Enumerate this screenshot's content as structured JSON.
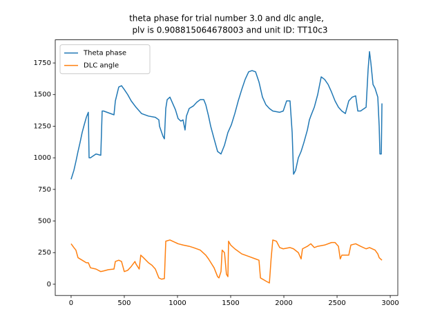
{
  "chart_data": {
    "type": "line",
    "title": [
      "theta phase for trial number 3.0 and dlc angle,",
      "plv is 0.908815064678003 and unit ID: TT10c3"
    ],
    "xlim": [
      -149,
      3071
    ],
    "ylim": [
      -89,
      1933
    ],
    "xticks": [
      0,
      500,
      1000,
      1500,
      2000,
      2500,
      3000
    ],
    "yticks": [
      0,
      250,
      500,
      750,
      1000,
      1250,
      1500,
      1750
    ],
    "legend": "upper left",
    "series": [
      {
        "name": "Theta phase",
        "color": "#1f77b4",
        "x": [
          0,
          26,
          45,
          65,
          84,
          104,
          123,
          143,
          162,
          169,
          182,
          234,
          279,
          292,
          305,
          403,
          416,
          448,
          474,
          500,
          532,
          565,
          610,
          662,
          727,
          792,
          825,
          831,
          864,
          877,
          890,
          903,
          929,
          955,
          981,
          1006,
          1032,
          1052,
          1071,
          1084,
          1110,
          1149,
          1182,
          1214,
          1247,
          1266,
          1292,
          1312,
          1344,
          1377,
          1409,
          1442,
          1474,
          1506,
          1539,
          1571,
          1604,
          1636,
          1669,
          1701,
          1734,
          1766,
          1799,
          1831,
          1864,
          1896,
          1961,
          1994,
          2026,
          2058,
          2078,
          2091,
          2110,
          2136,
          2162,
          2188,
          2221,
          2240,
          2253,
          2286,
          2318,
          2351,
          2383,
          2416,
          2448,
          2481,
          2513,
          2545,
          2578,
          2610,
          2643,
          2675,
          2695,
          2721,
          2773,
          2792,
          2805,
          2818,
          2838,
          2857,
          2883,
          2896,
          2903,
          2916,
          2922
        ],
        "values": [
          830,
          900,
          970,
          1050,
          1120,
          1200,
          1260,
          1320,
          1360,
          1000,
          1000,
          1030,
          1020,
          1370,
          1370,
          1340,
          1450,
          1560,
          1570,
          1540,
          1500,
          1450,
          1400,
          1350,
          1330,
          1320,
          1300,
          1250,
          1170,
          1150,
          1390,
          1460,
          1480,
          1430,
          1380,
          1310,
          1290,
          1300,
          1220,
          1330,
          1390,
          1410,
          1440,
          1460,
          1460,
          1420,
          1330,
          1250,
          1150,
          1050,
          1030,
          1100,
          1200,
          1260,
          1350,
          1450,
          1540,
          1620,
          1680,
          1690,
          1680,
          1600,
          1480,
          1420,
          1390,
          1370,
          1360,
          1370,
          1450,
          1450,
          1200,
          870,
          900,
          1000,
          1050,
          1120,
          1220,
          1300,
          1330,
          1400,
          1500,
          1640,
          1620,
          1580,
          1520,
          1450,
          1400,
          1370,
          1350,
          1450,
          1480,
          1490,
          1370,
          1370,
          1400,
          1700,
          1840,
          1750,
          1580,
          1550,
          1480,
          1250,
          1030,
          1030,
          1430
        ]
      },
      {
        "name": "DLC angle",
        "color": "#ff7f0e",
        "x": [
          0,
          26,
          45,
          65,
          104,
          143,
          162,
          182,
          234,
          279,
          305,
          350,
          403,
          416,
          448,
          474,
          500,
          532,
          565,
          600,
          610,
          640,
          655,
          680,
          727,
          760,
          792,
          825,
          850,
          877,
          890,
          929,
          955,
          1006,
          1052,
          1110,
          1149,
          1214,
          1266,
          1292,
          1344,
          1377,
          1390,
          1409,
          1420,
          1442,
          1460,
          1474,
          1480,
          1500,
          1539,
          1604,
          1669,
          1734,
          1766,
          1780,
          1831,
          1864,
          1880,
          1896,
          1930,
          1961,
          1994,
          2058,
          2091,
          2136,
          2162,
          2175,
          2221,
          2253,
          2286,
          2318,
          2383,
          2448,
          2481,
          2513,
          2530,
          2545,
          2610,
          2630,
          2675,
          2721,
          2773,
          2805,
          2857,
          2883,
          2896,
          2922
        ],
        "values": [
          320,
          290,
          270,
          210,
          190,
          170,
          170,
          130,
          120,
          100,
          105,
          115,
          120,
          180,
          190,
          180,
          100,
          110,
          140,
          180,
          160,
          120,
          230,
          210,
          170,
          150,
          120,
          50,
          40,
          45,
          340,
          350,
          340,
          320,
          310,
          300,
          290,
          270,
          230,
          200,
          130,
          60,
          50,
          100,
          270,
          250,
          80,
          60,
          340,
          310,
          280,
          240,
          220,
          200,
          190,
          50,
          25,
          10,
          200,
          350,
          340,
          290,
          280,
          290,
          280,
          250,
          200,
          280,
          300,
          320,
          290,
          300,
          310,
          330,
          330,
          300,
          200,
          230,
          230,
          310,
          320,
          300,
          280,
          290,
          270,
          240,
          210,
          190
        ]
      }
    ]
  }
}
